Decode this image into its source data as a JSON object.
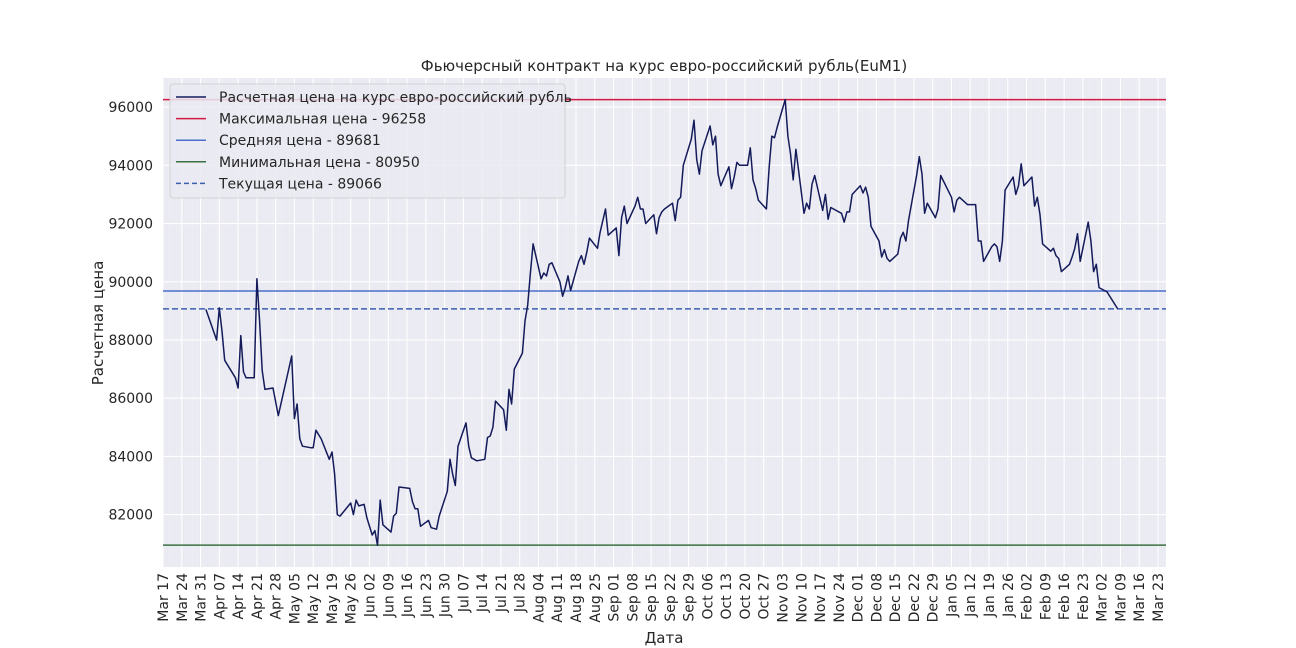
{
  "chart_data": {
    "type": "line",
    "title": "Фьючерсный контракт на курс евро-российский рубль(EuM1)",
    "xlabel": "Дата",
    "ylabel": "Расчетная цена",
    "grid": true,
    "legend_position": "top-left",
    "ylim": [
      80200,
      97000
    ],
    "yticks": [
      82000,
      84000,
      86000,
      88000,
      90000,
      92000,
      94000,
      96000
    ],
    "xlim": [
      "2021-03-17",
      "2022-03-26"
    ],
    "xtick_dates": [
      "2021-03-17",
      "2021-03-24",
      "2021-03-31",
      "2021-04-07",
      "2021-04-14",
      "2021-04-21",
      "2021-04-28",
      "2021-05-05",
      "2021-05-12",
      "2021-05-19",
      "2021-05-26",
      "2021-06-02",
      "2021-06-09",
      "2021-06-16",
      "2021-06-23",
      "2021-06-30",
      "2021-07-07",
      "2021-07-14",
      "2021-07-21",
      "2021-07-28",
      "2021-08-04",
      "2021-08-11",
      "2021-08-18",
      "2021-08-25",
      "2021-09-01",
      "2021-09-08",
      "2021-09-15",
      "2021-09-22",
      "2021-09-29",
      "2021-10-06",
      "2021-10-13",
      "2021-10-20",
      "2021-10-27",
      "2021-11-03",
      "2021-11-10",
      "2021-11-17",
      "2021-11-24",
      "2021-12-01",
      "2021-12-08",
      "2021-12-15",
      "2021-12-22",
      "2021-12-29",
      "2022-01-05",
      "2022-01-12",
      "2022-01-19",
      "2022-01-26",
      "2022-02-02",
      "2022-02-09",
      "2022-02-16",
      "2022-02-23",
      "2022-03-02",
      "2022-03-09",
      "2022-03-16",
      "2022-03-23"
    ],
    "xtick_labels": [
      "Mar 17",
      "Mar 24",
      "Mar 31",
      "Apr 07",
      "Apr 14",
      "Apr 21",
      "Apr 28",
      "May 05",
      "May 12",
      "May 19",
      "May 26",
      "Jun 02",
      "Jun 09",
      "Jun 16",
      "Jun 23",
      "Jun 30",
      "Jul 07",
      "Jul 14",
      "Jul 21",
      "Jul 28",
      "Aug 04",
      "Aug 11",
      "Aug 18",
      "Aug 25",
      "Sep 01",
      "Sep 08",
      "Sep 15",
      "Sep 22",
      "Sep 29",
      "Oct 06",
      "Oct 13",
      "Oct 20",
      "Oct 27",
      "Nov 03",
      "Nov 10",
      "Nov 17",
      "Nov 24",
      "Dec 01",
      "Dec 08",
      "Dec 15",
      "Dec 22",
      "Dec 29",
      "Jan 05",
      "Jan 12",
      "Jan 19",
      "Jan 26",
      "Feb 02",
      "Feb 09",
      "Feb 16",
      "Feb 23",
      "Mar 02",
      "Mar 09",
      "Mar 16",
      "Mar 23"
    ],
    "series": [
      {
        "name": "Расчетная цена на курс евро-российский рубль",
        "color": "#141b5a",
        "style": "solid",
        "points": [
          [
            "2021-04-02",
            89050
          ],
          [
            "2021-04-06",
            88000
          ],
          [
            "2021-04-07",
            89100
          ],
          [
            "2021-04-08",
            88300
          ],
          [
            "2021-04-09",
            87300
          ],
          [
            "2021-04-13",
            86700
          ],
          [
            "2021-04-14",
            86350
          ],
          [
            "2021-04-15",
            88150
          ],
          [
            "2021-04-16",
            86900
          ],
          [
            "2021-04-17",
            86700
          ],
          [
            "2021-04-20",
            86700
          ],
          [
            "2021-04-21",
            90100
          ],
          [
            "2021-04-22",
            88700
          ],
          [
            "2021-04-23",
            86950
          ],
          [
            "2021-04-24",
            86300
          ],
          [
            "2021-04-27",
            86350
          ],
          [
            "2021-04-29",
            85400
          ],
          [
            "2021-05-04",
            87450
          ],
          [
            "2021-05-05",
            85300
          ],
          [
            "2021-05-06",
            85800
          ],
          [
            "2021-05-07",
            84600
          ],
          [
            "2021-05-08",
            84350
          ],
          [
            "2021-05-11",
            84300
          ],
          [
            "2021-05-12",
            84300
          ],
          [
            "2021-05-13",
            84900
          ],
          [
            "2021-05-15",
            84600
          ],
          [
            "2021-05-18",
            83900
          ],
          [
            "2021-05-19",
            84150
          ],
          [
            "2021-05-20",
            83400
          ],
          [
            "2021-05-21",
            82000
          ],
          [
            "2021-05-22",
            81950
          ],
          [
            "2021-05-26",
            82400
          ],
          [
            "2021-05-27",
            82000
          ],
          [
            "2021-05-28",
            82500
          ],
          [
            "2021-05-29",
            82300
          ],
          [
            "2021-05-31",
            82350
          ],
          [
            "2021-06-01",
            81900
          ],
          [
            "2021-06-03",
            81300
          ],
          [
            "2021-06-04",
            81450
          ],
          [
            "2021-06-05",
            80950
          ],
          [
            "2021-06-06",
            82500
          ],
          [
            "2021-06-07",
            81650
          ],
          [
            "2021-06-10",
            81400
          ],
          [
            "2021-06-11",
            81950
          ],
          [
            "2021-06-12",
            82050
          ],
          [
            "2021-06-13",
            82950
          ],
          [
            "2021-06-17",
            82900
          ],
          [
            "2021-06-18",
            82450
          ],
          [
            "2021-06-19",
            82200
          ],
          [
            "2021-06-20",
            82200
          ],
          [
            "2021-06-21",
            81600
          ],
          [
            "2021-06-24",
            81800
          ],
          [
            "2021-06-25",
            81550
          ],
          [
            "2021-06-27",
            81500
          ],
          [
            "2021-06-28",
            81950
          ],
          [
            "2021-07-01",
            82800
          ],
          [
            "2021-07-02",
            83900
          ],
          [
            "2021-07-03",
            83400
          ],
          [
            "2021-07-04",
            83000
          ],
          [
            "2021-07-05",
            84350
          ],
          [
            "2021-07-08",
            85150
          ],
          [
            "2021-07-09",
            84350
          ],
          [
            "2021-07-10",
            83950
          ],
          [
            "2021-07-12",
            83850
          ],
          [
            "2021-07-15",
            83900
          ],
          [
            "2021-07-16",
            84650
          ],
          [
            "2021-07-17",
            84700
          ],
          [
            "2021-07-18",
            85000
          ],
          [
            "2021-07-19",
            85900
          ],
          [
            "2021-07-22",
            85600
          ],
          [
            "2021-07-23",
            84900
          ],
          [
            "2021-07-24",
            86300
          ],
          [
            "2021-07-25",
            85800
          ],
          [
            "2021-07-26",
            87000
          ],
          [
            "2021-07-29",
            87550
          ],
          [
            "2021-07-30",
            88650
          ],
          [
            "2021-07-31",
            89200
          ],
          [
            "2021-08-01",
            90300
          ],
          [
            "2021-08-02",
            91300
          ],
          [
            "2021-08-05",
            90100
          ],
          [
            "2021-08-06",
            90300
          ],
          [
            "2021-08-07",
            90200
          ],
          [
            "2021-08-08",
            90600
          ],
          [
            "2021-08-09",
            90650
          ],
          [
            "2021-08-12",
            90000
          ],
          [
            "2021-08-13",
            89500
          ],
          [
            "2021-08-14",
            89800
          ],
          [
            "2021-08-15",
            90200
          ],
          [
            "2021-08-16",
            89700
          ],
          [
            "2021-08-19",
            90700
          ],
          [
            "2021-08-20",
            90900
          ],
          [
            "2021-08-21",
            90600
          ],
          [
            "2021-08-22",
            91000
          ],
          [
            "2021-08-23",
            91500
          ],
          [
            "2021-08-26",
            91150
          ],
          [
            "2021-08-27",
            91700
          ],
          [
            "2021-08-29",
            92500
          ],
          [
            "2021-08-30",
            91600
          ],
          [
            "2021-09-02",
            91850
          ],
          [
            "2021-09-03",
            90900
          ],
          [
            "2021-09-04",
            92200
          ],
          [
            "2021-09-05",
            92600
          ],
          [
            "2021-09-06",
            92000
          ],
          [
            "2021-09-09",
            92600
          ],
          [
            "2021-09-10",
            92900
          ],
          [
            "2021-09-11",
            92500
          ],
          [
            "2021-09-12",
            92500
          ],
          [
            "2021-09-13",
            92000
          ],
          [
            "2021-09-16",
            92300
          ],
          [
            "2021-09-17",
            91650
          ],
          [
            "2021-09-18",
            92200
          ],
          [
            "2021-09-19",
            92400
          ],
          [
            "2021-09-20",
            92500
          ],
          [
            "2021-09-23",
            92700
          ],
          [
            "2021-09-24",
            92100
          ],
          [
            "2021-09-25",
            92800
          ],
          [
            "2021-09-26",
            92900
          ],
          [
            "2021-09-27",
            94000
          ],
          [
            "2021-09-30",
            94900
          ],
          [
            "2021-10-01",
            95550
          ],
          [
            "2021-10-02",
            94200
          ],
          [
            "2021-10-03",
            93700
          ],
          [
            "2021-10-04",
            94500
          ],
          [
            "2021-10-07",
            95350
          ],
          [
            "2021-10-08",
            94700
          ],
          [
            "2021-10-09",
            95000
          ],
          [
            "2021-10-10",
            93700
          ],
          [
            "2021-10-11",
            93300
          ],
          [
            "2021-10-14",
            93950
          ],
          [
            "2021-10-15",
            93200
          ],
          [
            "2021-10-16",
            93600
          ],
          [
            "2021-10-17",
            94100
          ],
          [
            "2021-10-18",
            94000
          ],
          [
            "2021-10-21",
            94000
          ],
          [
            "2021-10-22",
            94600
          ],
          [
            "2021-10-23",
            93500
          ],
          [
            "2021-10-24",
            93200
          ],
          [
            "2021-10-25",
            92800
          ],
          [
            "2021-10-28",
            92500
          ],
          [
            "2021-10-29",
            93900
          ],
          [
            "2021-10-30",
            95000
          ],
          [
            "2021-10-31",
            94950
          ],
          [
            "2021-11-01",
            95300
          ],
          [
            "2021-11-04",
            96258
          ],
          [
            "2021-11-05",
            95000
          ],
          [
            "2021-11-06",
            94400
          ],
          [
            "2021-11-07",
            93500
          ],
          [
            "2021-11-08",
            94550
          ],
          [
            "2021-11-11",
            92350
          ],
          [
            "2021-11-12",
            92700
          ],
          [
            "2021-11-13",
            92500
          ],
          [
            "2021-11-14",
            93350
          ],
          [
            "2021-11-15",
            93650
          ],
          [
            "2021-11-18",
            92450
          ],
          [
            "2021-11-19",
            93000
          ],
          [
            "2021-11-20",
            92150
          ],
          [
            "2021-11-21",
            92550
          ],
          [
            "2021-11-22",
            92500
          ],
          [
            "2021-11-25",
            92350
          ],
          [
            "2021-11-26",
            92050
          ],
          [
            "2021-11-27",
            92400
          ],
          [
            "2021-11-28",
            92400
          ],
          [
            "2021-11-29",
            93000
          ],
          [
            "2021-12-02",
            93300
          ],
          [
            "2021-12-03",
            93050
          ],
          [
            "2021-12-04",
            93250
          ],
          [
            "2021-12-05",
            92900
          ],
          [
            "2021-12-06",
            91900
          ],
          [
            "2021-12-09",
            91400
          ],
          [
            "2021-12-10",
            90850
          ],
          [
            "2021-12-11",
            91100
          ],
          [
            "2021-12-12",
            90800
          ],
          [
            "2021-12-13",
            90700
          ],
          [
            "2021-12-16",
            90950
          ],
          [
            "2021-12-17",
            91500
          ],
          [
            "2021-12-18",
            91700
          ],
          [
            "2021-12-19",
            91400
          ],
          [
            "2021-12-20",
            92100
          ],
          [
            "2021-12-23",
            93650
          ],
          [
            "2021-12-24",
            94300
          ],
          [
            "2021-12-25",
            93700
          ],
          [
            "2021-12-26",
            92350
          ],
          [
            "2021-12-27",
            92700
          ],
          [
            "2021-12-30",
            92200
          ],
          [
            "2021-12-31",
            92500
          ],
          [
            "2022-01-01",
            93650
          ],
          [
            "2022-01-05",
            92900
          ],
          [
            "2022-01-06",
            92400
          ],
          [
            "2022-01-07",
            92800
          ],
          [
            "2022-01-08",
            92900
          ],
          [
            "2022-01-11",
            92650
          ],
          [
            "2022-01-14",
            92650
          ],
          [
            "2022-01-15",
            91400
          ],
          [
            "2022-01-16",
            91400
          ],
          [
            "2022-01-17",
            90700
          ],
          [
            "2022-01-20",
            91200
          ],
          [
            "2022-01-21",
            91300
          ],
          [
            "2022-01-22",
            91200
          ],
          [
            "2022-01-23",
            90700
          ],
          [
            "2022-01-24",
            91400
          ],
          [
            "2022-01-25",
            93150
          ],
          [
            "2022-01-28",
            93600
          ],
          [
            "2022-01-29",
            93000
          ],
          [
            "2022-01-30",
            93300
          ],
          [
            "2022-01-31",
            94050
          ],
          [
            "2022-02-01",
            93300
          ],
          [
            "2022-02-04",
            93600
          ],
          [
            "2022-02-05",
            92600
          ],
          [
            "2022-02-06",
            92900
          ],
          [
            "2022-02-07",
            92300
          ],
          [
            "2022-02-08",
            91300
          ],
          [
            "2022-02-11",
            91050
          ],
          [
            "2022-02-12",
            91150
          ],
          [
            "2022-02-13",
            90900
          ],
          [
            "2022-02-14",
            90800
          ],
          [
            "2022-02-15",
            90350
          ],
          [
            "2022-02-18",
            90600
          ],
          [
            "2022-02-19",
            90850
          ],
          [
            "2022-02-20",
            91150
          ],
          [
            "2022-02-21",
            91650
          ],
          [
            "2022-02-22",
            90700
          ],
          [
            "2022-02-25",
            92050
          ],
          [
            "2022-02-26",
            91400
          ],
          [
            "2022-02-27",
            90350
          ],
          [
            "2022-02-28",
            90600
          ],
          [
            "2022-03-01",
            89800
          ],
          [
            "2022-03-04",
            89650
          ],
          [
            "2022-03-08",
            89066
          ]
        ]
      }
    ],
    "reference_lines": [
      {
        "name": "Максимальная цена - 96258",
        "value": 96258,
        "color": "#d3193f",
        "style": "solid"
      },
      {
        "name": "Средняя цена - 89681",
        "value": 89681,
        "color": "#4c6fcc",
        "style": "solid"
      },
      {
        "name": "Минимальная цена - 80950",
        "value": 80950,
        "color": "#3b7043",
        "style": "solid"
      },
      {
        "name": "Текущая цена - 89066",
        "value": 89066,
        "color": "#3d5fb0",
        "style": "dashed"
      }
    ]
  }
}
